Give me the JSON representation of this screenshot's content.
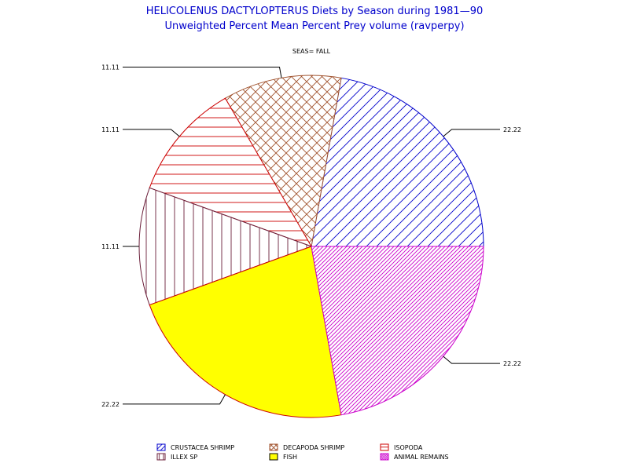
{
  "chart_data": {
    "type": "pie",
    "title": "HELICOLENUS DACTYLOPTERUS Diets by Season during 1981—90",
    "subtitle": "Unweighted Percent Mean Percent Prey  volume (ravperpy)",
    "group_label": "SEAS= FALL",
    "slices": [
      {
        "name": "CRUSTACEA SHRIMP",
        "value": 22.22,
        "label": "22.22",
        "color": "#0000cc",
        "pattern": "diag-right"
      },
      {
        "name": "DECAPODA SHRIMP",
        "value": 11.11,
        "label": "11.11",
        "color": "#a0522d",
        "pattern": "crosshatch"
      },
      {
        "name": "ISOPODA",
        "value": 11.11,
        "label": "11.11",
        "color": "#cc0000",
        "pattern": "horizontal"
      },
      {
        "name": "ILLEX SP",
        "value": 11.11,
        "label": "11.11",
        "color": "#6b1f3a",
        "pattern": "vertical"
      },
      {
        "name": "FISH",
        "value": 22.22,
        "label": "22.22",
        "color": "#ffff00",
        "pattern": "solid"
      },
      {
        "name": "ANIMAL REMAINS",
        "value": 22.22,
        "label": "22.22",
        "color": "#cc00cc",
        "pattern": "dense-diag"
      }
    ],
    "legend_position": "bottom"
  }
}
